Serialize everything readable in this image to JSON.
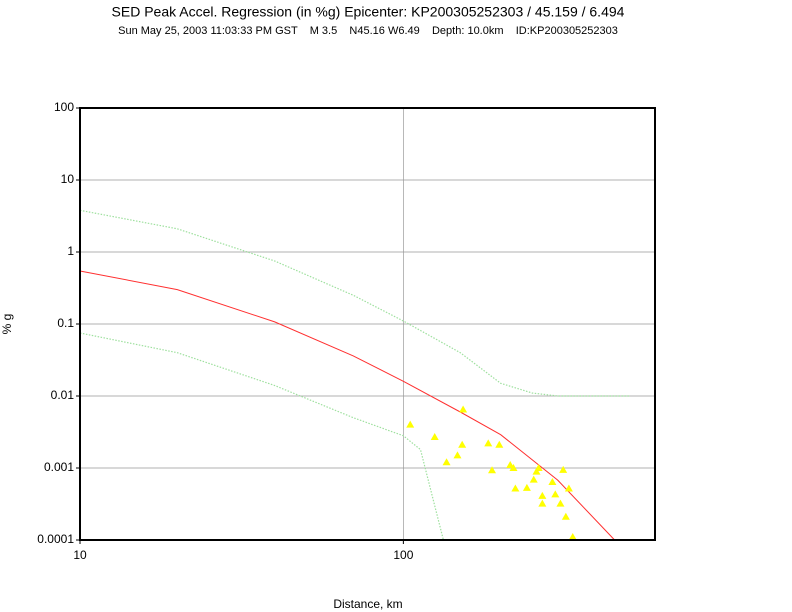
{
  "chart_data": {
    "type": "scatter",
    "title": "SED Peak Accel. Regression (in %g) Epicenter: KP200305252303 / 45.159 / 6.494",
    "subtitle": "Sun May 25, 2003 11:03:33 PM GST    M 3.5    N45.16 W6.49    Depth: 10.0km    ID:KP200305252303",
    "x_label": "Distance, km",
    "y_label": "% g",
    "xlog": true,
    "ylog": true,
    "grid": true,
    "xlim": [
      10,
      600
    ],
    "ylim": [
      0.0001,
      100
    ],
    "xticks": [
      10,
      100
    ],
    "yticks": [
      0.0001,
      0.001,
      0.01,
      0.1,
      1,
      10,
      100
    ],
    "series": [
      {
        "kind": "line",
        "style": "solid",
        "color": "#ff3030",
        "x": [
          10,
          20,
          40,
          70,
          100,
          150,
          200,
          300,
          450
        ],
        "values": [
          0.545,
          0.3,
          0.107,
          0.036,
          0.016,
          0.006,
          0.0029,
          0.00068,
          0.0001
        ]
      },
      {
        "kind": "line",
        "style": "dotted",
        "color": "#9ee09e",
        "x": [
          10,
          20,
          40,
          70,
          100,
          150,
          200,
          250,
          300,
          500
        ],
        "values": [
          3.8,
          2.1,
          0.75,
          0.25,
          0.11,
          0.04,
          0.015,
          0.011,
          0.01,
          0.01
        ]
      },
      {
        "kind": "line",
        "style": "dotted",
        "color": "#9ee09e",
        "x": [
          10,
          20,
          40,
          70,
          100,
          113,
          133
        ],
        "values": [
          0.075,
          0.04,
          0.014,
          0.005,
          0.0028,
          0.0018,
          0.0001
        ]
      },
      {
        "kind": "points",
        "color": "#ffff00",
        "x": [
          105,
          153,
          125,
          136,
          147,
          152,
          183,
          188,
          198,
          214,
          219,
          222,
          241,
          253,
          258,
          262,
          269,
          269,
          289,
          295,
          306,
          312,
          318,
          325,
          334
        ],
        "values": [
          0.004,
          0.0065,
          0.0027,
          0.0012,
          0.0015,
          0.0021,
          0.0022,
          0.00093,
          0.0021,
          0.0011,
          0.001,
          0.00052,
          0.00053,
          0.00069,
          0.00089,
          0.001,
          0.00041,
          0.00032,
          0.00064,
          0.00043,
          0.00032,
          0.00094,
          0.00021,
          0.00052,
          0.00011
        ]
      }
    ]
  }
}
